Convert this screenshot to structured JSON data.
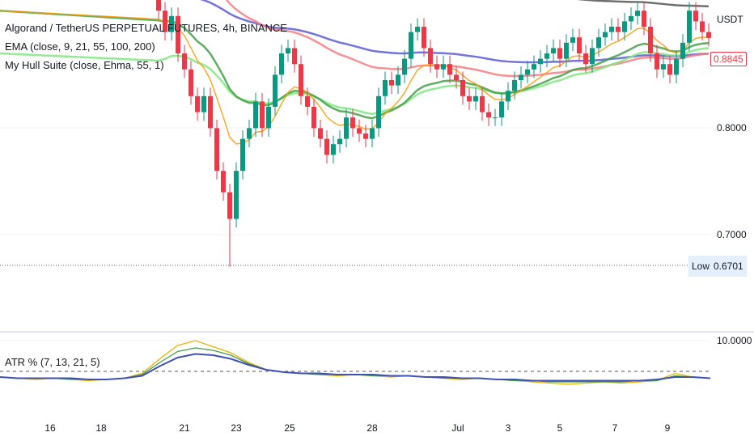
{
  "header": {
    "symbol_line": "Algorand / TetherUS PERPETUAL FUTURES, 4h, BINANCE",
    "ema_legend": "EMA (close, 9, 21, 55, 100, 200)",
    "hull_legend": "My Hull Suite (close, Ehma, 55, 1)"
  },
  "price_axis": {
    "currency": "USDT",
    "last_price": "0.8845",
    "ticks": [
      "0.8000",
      "0.7000"
    ],
    "low_label": "Low",
    "low_value": "0.6701"
  },
  "atr_pane": {
    "legend": "ATR % (7, 13, 21, 5)",
    "tick": "10.0000"
  },
  "time_axis": {
    "labels": [
      "16",
      "18",
      "21",
      "23",
      "25",
      "28",
      "Jul",
      "3",
      "5",
      "7",
      "9"
    ]
  },
  "colors": {
    "up": "#089981",
    "down": "#f23645",
    "ema9": "#ff9800",
    "ema21": "#43a047",
    "ema55": "#f77c80",
    "ema100": "#5b5bd6",
    "ema200": "#555555",
    "hull": "#7ee87e"
  },
  "chart_data": {
    "type": "candlestick",
    "price_range": [
      0.61,
      0.92
    ],
    "low": 0.6701,
    "last": 0.8845,
    "closes": [
      0.91,
      0.89,
      0.905,
      0.87,
      0.855,
      0.83,
      0.815,
      0.83,
      0.8,
      0.76,
      0.74,
      0.715,
      0.76,
      0.79,
      0.8,
      0.825,
      0.8,
      0.82,
      0.85,
      0.87,
      0.875,
      0.86,
      0.83,
      0.82,
      0.8,
      0.79,
      0.775,
      0.785,
      0.79,
      0.81,
      0.8,
      0.795,
      0.79,
      0.8,
      0.83,
      0.845,
      0.84,
      0.85,
      0.865,
      0.89,
      0.895,
      0.875,
      0.86,
      0.855,
      0.86,
      0.85,
      0.845,
      0.83,
      0.825,
      0.83,
      0.815,
      0.81,
      0.81,
      0.825,
      0.835,
      0.845,
      0.85,
      0.855,
      0.86,
      0.865,
      0.87,
      0.875,
      0.865,
      0.88,
      0.885,
      0.87,
      0.86,
      0.875,
      0.885,
      0.89,
      0.895,
      0.89,
      0.9,
      0.905,
      0.91,
      0.895,
      0.87,
      0.855,
      0.86,
      0.85,
      0.865,
      0.88,
      0.91,
      0.9,
      0.89,
      0.8845
    ],
    "atr": {
      "reference_level": 7.5,
      "series": [
        {
          "name": "ATR 7",
          "color": "#f0b000",
          "values": [
            7.0,
            6.9,
            6.8,
            6.9,
            6.8,
            6.7,
            6.8,
            6.9,
            7.3,
            8.5,
            9.6,
            10.0,
            9.5,
            9.0,
            8.2,
            7.6,
            7.4,
            7.3,
            7.2,
            7.1,
            7.2,
            7.1,
            7.0,
            7.1,
            7.0,
            6.9,
            6.8,
            6.9,
            6.8,
            6.7,
            6.6,
            6.5,
            6.4,
            6.5,
            6.6,
            6.5,
            6.6,
            6.7,
            7.3,
            7.0,
            6.9
          ]
        },
        {
          "name": "ATR 13",
          "color": "#43a047",
          "values": [
            7.0,
            6.9,
            6.9,
            6.9,
            6.8,
            6.8,
            6.8,
            6.9,
            7.2,
            8.2,
            9.1,
            9.4,
            9.2,
            8.8,
            8.1,
            7.6,
            7.4,
            7.3,
            7.2,
            7.2,
            7.2,
            7.1,
            7.1,
            7.1,
            7.0,
            6.9,
            6.9,
            6.9,
            6.8,
            6.7,
            6.7,
            6.6,
            6.6,
            6.6,
            6.6,
            6.6,
            6.7,
            6.7,
            7.1,
            7.0,
            6.9
          ]
        },
        {
          "name": "ATR 21",
          "color": "#3f51b5",
          "values": [
            7.0,
            6.9,
            6.9,
            6.9,
            6.9,
            6.8,
            6.8,
            6.9,
            7.1,
            7.9,
            8.6,
            8.9,
            8.8,
            8.5,
            8.0,
            7.6,
            7.4,
            7.3,
            7.3,
            7.2,
            7.2,
            7.2,
            7.1,
            7.1,
            7.0,
            7.0,
            6.9,
            6.9,
            6.8,
            6.8,
            6.7,
            6.7,
            6.7,
            6.7,
            6.7,
            6.7,
            6.7,
            6.8,
            7.0,
            7.0,
            6.9
          ]
        }
      ]
    }
  }
}
